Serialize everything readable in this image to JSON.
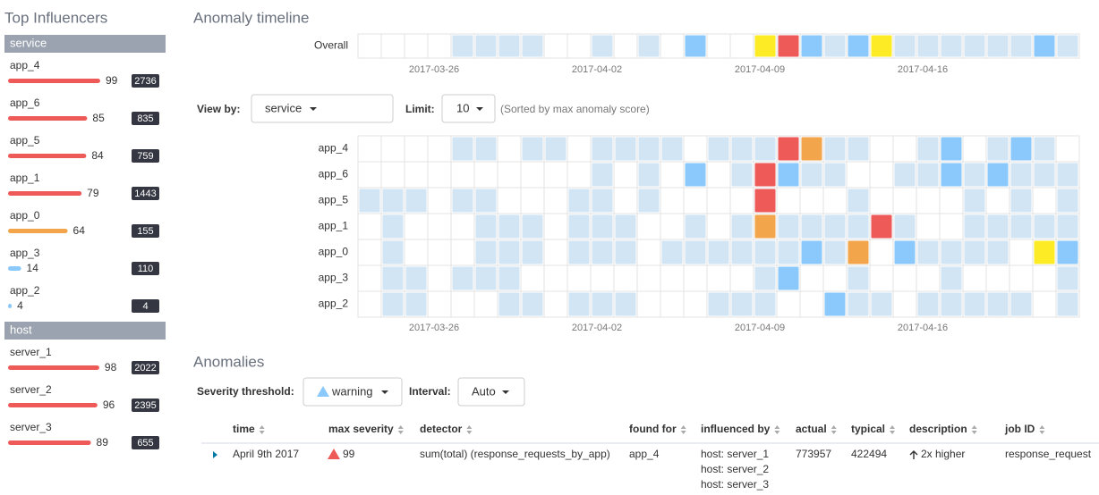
{
  "sidebar": {
    "title": "Top Influencers",
    "groups": [
      {
        "name": "service",
        "items": [
          {
            "label": "app_4",
            "score": 99,
            "count": 2736
          },
          {
            "label": "app_6",
            "score": 85,
            "count": 835
          },
          {
            "label": "app_5",
            "score": 84,
            "count": 759
          },
          {
            "label": "app_1",
            "score": 79,
            "count": 1443
          },
          {
            "label": "app_0",
            "score": 64,
            "count": 155
          },
          {
            "label": "app_3",
            "score": 14,
            "count": 110
          },
          {
            "label": "app_2",
            "score": 4,
            "count": 4
          }
        ]
      },
      {
        "name": "host",
        "items": [
          {
            "label": "server_1",
            "score": 98,
            "count": 2022
          },
          {
            "label": "server_2",
            "score": 96,
            "count": 2395
          },
          {
            "label": "server_3",
            "score": 89,
            "count": 655
          }
        ]
      }
    ]
  },
  "timeline": {
    "title": "Anomaly timeline",
    "overall_label": "Overall",
    "overall": [
      0,
      0,
      0,
      0,
      1,
      1,
      1,
      1,
      0,
      0,
      1,
      0,
      1,
      0,
      2,
      0,
      0,
      3,
      5,
      2,
      1,
      2,
      3,
      1,
      1,
      1,
      1,
      1,
      1,
      2,
      1
    ],
    "dates": [
      "2017-03-26",
      "2017-04-02",
      "2017-04-09",
      "2017-04-16"
    ],
    "view_by_label": "View by:",
    "view_by": "service",
    "limit_label": "Limit:",
    "limit": 10,
    "sort_note": "(Sorted by max anomaly score)",
    "severity_colors": [
      "#ffffff",
      "#d2e5f5",
      "#8bc8fb",
      "#fdec25",
      "#f2a54a",
      "#ee5a58"
    ],
    "lanes": [
      {
        "label": "app_4",
        "cells": [
          0,
          0,
          0,
          0,
          1,
          1,
          0,
          1,
          1,
          0,
          1,
          1,
          1,
          1,
          0,
          1,
          1,
          1,
          5,
          4,
          1,
          1,
          0,
          0,
          1,
          2,
          0,
          1,
          2,
          1,
          0
        ]
      },
      {
        "label": "app_6",
        "cells": [
          0,
          0,
          0,
          0,
          0,
          0,
          0,
          0,
          0,
          0,
          1,
          0,
          1,
          0,
          2,
          0,
          1,
          5,
          2,
          1,
          1,
          0,
          0,
          1,
          1,
          2,
          1,
          2,
          1,
          1,
          1
        ]
      },
      {
        "label": "app_5",
        "cells": [
          1,
          1,
          1,
          0,
          1,
          1,
          0,
          0,
          0,
          1,
          1,
          0,
          1,
          0,
          0,
          0,
          0,
          5,
          0,
          0,
          0,
          1,
          0,
          0,
          0,
          0,
          1,
          0,
          1,
          0,
          1
        ]
      },
      {
        "label": "app_1",
        "cells": [
          0,
          1,
          0,
          0,
          0,
          1,
          1,
          1,
          0,
          1,
          1,
          1,
          0,
          0,
          1,
          0,
          1,
          4,
          1,
          1,
          1,
          1,
          5,
          1,
          0,
          0,
          1,
          1,
          1,
          1,
          1
        ]
      },
      {
        "label": "app_0",
        "cells": [
          0,
          1,
          0,
          0,
          0,
          1,
          1,
          1,
          0,
          1,
          1,
          1,
          0,
          1,
          1,
          1,
          1,
          1,
          1,
          2,
          1,
          4,
          0,
          2,
          1,
          1,
          1,
          1,
          0,
          3,
          2
        ]
      },
      {
        "label": "app_3",
        "cells": [
          0,
          1,
          1,
          0,
          1,
          1,
          1,
          0,
          0,
          0,
          0,
          0,
          0,
          0,
          0,
          0,
          0,
          1,
          2,
          0,
          0,
          1,
          0,
          0,
          0,
          1,
          0,
          0,
          0,
          0,
          1
        ]
      },
      {
        "label": "app_2",
        "cells": [
          0,
          1,
          1,
          0,
          0,
          0,
          1,
          1,
          0,
          1,
          1,
          1,
          0,
          0,
          0,
          1,
          1,
          1,
          0,
          0,
          2,
          1,
          1,
          0,
          1,
          1,
          1,
          1,
          1,
          0,
          1
        ]
      }
    ]
  },
  "anomalies": {
    "title": "Anomalies",
    "threshold_label": "Severity threshold:",
    "threshold": "warning",
    "interval_label": "Interval:",
    "interval": "Auto",
    "columns": [
      "time",
      "max severity",
      "detector",
      "found for",
      "influenced by",
      "actual",
      "typical",
      "description",
      "job ID"
    ],
    "rows": [
      {
        "time": "April 9th 2017",
        "max_severity": 99,
        "detector": "sum(total) (response_requests_by_app)",
        "found_for": "app_4",
        "influenced_by": [
          "host: server_1",
          "host: server_2",
          "host: server_3"
        ],
        "actual": 773957,
        "typical": 422494,
        "description": "2x higher",
        "job_id": "response_request"
      }
    ]
  }
}
